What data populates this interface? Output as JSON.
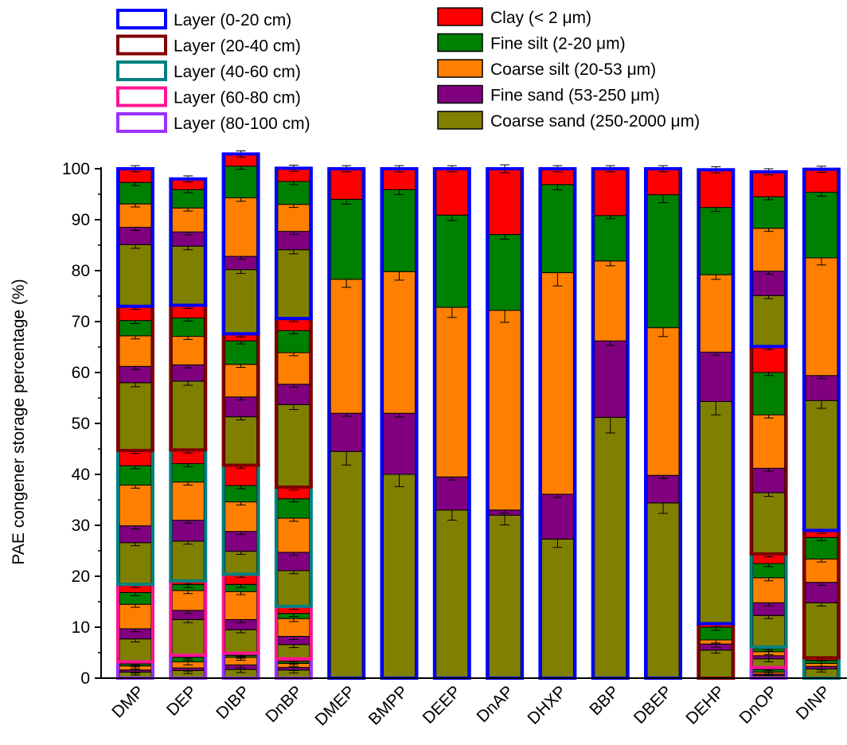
{
  "chart_data": {
    "type": "bar",
    "stacked": true,
    "ylabel": "PAE congener storage percentage (%)",
    "ylim": [
      0,
      100
    ],
    "yticks": [
      0,
      10,
      20,
      30,
      40,
      50,
      60,
      70,
      80,
      90,
      100
    ],
    "categories": [
      "DMP",
      "DEP",
      "DIBP",
      "DnBP",
      "DMEP",
      "BMPP",
      "DEEP",
      "DnAP",
      "DHXP",
      "BBP",
      "DBEP",
      "DEHP",
      "DnOP",
      "DINP"
    ],
    "fractions": [
      {
        "name": "Coarse sand (250-2000 μm)",
        "color": "#808000"
      },
      {
        "name": "Fine sand (53-250 μm)",
        "color": "#800080"
      },
      {
        "name": "Coarse silt (20-53 μm)",
        "color": "#ff8000"
      },
      {
        "name": "Fine silt (2-20 μm)",
        "color": "#008000"
      },
      {
        "name": "Clay (< 2 μm)",
        "color": "#ff0000"
      }
    ],
    "layers": [
      {
        "name": "Layer (80-100 cm)",
        "color": "#9b30ff"
      },
      {
        "name": "Layer (60-80 cm)",
        "color": "#ff1493"
      },
      {
        "name": "Layer (40-60 cm)",
        "color": "#008080"
      },
      {
        "name": "Layer (20-40 cm)",
        "color": "#800000"
      },
      {
        "name": "Layer (0-20 cm)",
        "color": "#0000ff"
      }
    ],
    "bars": [
      {
        "category": "DMP",
        "segments": [
          {
            "layer": 0,
            "fractions": [
              1.2,
              0.4,
              0.8,
              0.4,
              0.4
            ]
          },
          {
            "layer": 1,
            "fractions": [
              4.5,
              2.0,
              4.8,
              2.3,
              1.6
            ]
          },
          {
            "layer": 2,
            "fractions": [
              8.2,
              3.3,
              8.0,
              3.8,
              3.0
            ]
          },
          {
            "layer": 3,
            "fractions": [
              13.3,
              3.2,
              6.0,
              3.0,
              2.8
            ]
          },
          {
            "layer": 4,
            "fractions": [
              12.1,
              3.4,
              4.6,
              4.2,
              2.7
            ]
          }
        ]
      },
      {
        "category": "DEP",
        "segments": [
          {
            "layer": 0,
            "fractions": [
              1.5,
              0.5,
              1.2,
              0.9,
              0.4
            ]
          },
          {
            "layer": 1,
            "fractions": [
              7.0,
              1.8,
              3.9,
              1.2,
              0.7
            ]
          },
          {
            "layer": 2,
            "fractions": [
              7.8,
              4.1,
              7.5,
              3.6,
              2.7
            ]
          },
          {
            "layer": 3,
            "fractions": [
              13.5,
              3.2,
              5.6,
              3.6,
              2.5
            ]
          },
          {
            "layer": 4,
            "fractions": [
              11.6,
              2.8,
              4.7,
              3.6,
              2.1
            ]
          }
        ]
      },
      {
        "category": "DIBP",
        "segments": [
          {
            "layer": 0,
            "fractions": [
              1.7,
              0.9,
              1.5,
              0.4,
              0.4
            ]
          },
          {
            "layer": 1,
            "fractions": [
              4.6,
              2.0,
              5.5,
              1.4,
              2.0
            ]
          },
          {
            "layer": 2,
            "fractions": [
              4.5,
              3.9,
              5.8,
              3.2,
              4.0
            ]
          },
          {
            "layer": 3,
            "fractions": [
              9.5,
              3.9,
              6.4,
              4.6,
              1.4
            ]
          },
          {
            "layer": 4,
            "fractions": [
              12.6,
              2.6,
              11.5,
              6.2,
              2.4
            ]
          }
        ]
      },
      {
        "category": "DnBP",
        "segments": [
          {
            "layer": 0,
            "fractions": [
              1.6,
              0.5,
              0.8,
              0.4,
              0.5
            ]
          },
          {
            "layer": 1,
            "fractions": [
              2.8,
              1.6,
              3.5,
              1.0,
              1.4
            ]
          },
          {
            "layer": 2,
            "fractions": [
              7.0,
              3.6,
              6.7,
              3.8,
              2.3
            ]
          },
          {
            "layer": 3,
            "fractions": [
              16.2,
              4.0,
              6.2,
              4.3,
              2.4
            ]
          },
          {
            "layer": 4,
            "fractions": [
              13.5,
              3.6,
              5.3,
              4.5,
              2.6
            ]
          }
        ]
      },
      {
        "category": "DMEP",
        "segments": [
          {
            "layer": 4,
            "fractions": [
              44.5,
              7.5,
              26.3,
              15.7,
              6.0
            ]
          }
        ]
      },
      {
        "category": "BMPP",
        "segments": [
          {
            "layer": 4,
            "fractions": [
              40.0,
              12.0,
              27.8,
              16.1,
              4.1
            ]
          }
        ]
      },
      {
        "category": "DEEP",
        "segments": [
          {
            "layer": 4,
            "fractions": [
              33.0,
              6.5,
              33.3,
              18.1,
              9.1
            ]
          }
        ]
      },
      {
        "category": "DnAP",
        "segments": [
          {
            "layer": 4,
            "fractions": [
              32.0,
              1.0,
              39.2,
              14.9,
              12.9
            ]
          }
        ]
      },
      {
        "category": "DHXP",
        "segments": [
          {
            "layer": 4,
            "fractions": [
              27.3,
              8.8,
              43.5,
              17.3,
              3.1
            ]
          }
        ]
      },
      {
        "category": "BBP",
        "segments": [
          {
            "layer": 4,
            "fractions": [
              51.2,
              15.0,
              15.7,
              8.9,
              9.2
            ]
          }
        ]
      },
      {
        "category": "DBEP",
        "segments": [
          {
            "layer": 4,
            "fractions": [
              34.4,
              5.4,
              29.0,
              26.1,
              5.1
            ]
          }
        ]
      },
      {
        "category": "DEHP",
        "segments": [
          {
            "layer": 3,
            "fractions": [
              5.5,
              1.2,
              0.8,
              2.5,
              0.7
            ]
          },
          {
            "layer": 4,
            "fractions": [
              43.6,
              9.7,
              15.2,
              13.2,
              7.4
            ]
          }
        ]
      },
      {
        "category": "DnOP",
        "segments": [
          {
            "layer": 0,
            "fractions": [
              0.5,
              0.3,
              0.4,
              0.5,
              0.4
            ]
          },
          {
            "layer": 1,
            "fractions": [
              1.7,
              0.6,
              0.8,
              0.6,
              0.3
            ]
          },
          {
            "layer": 2,
            "fractions": [
              6.2,
              2.5,
              4.9,
              2.8,
              1.9
            ]
          },
          {
            "layer": 3,
            "fractions": [
              12.0,
              4.8,
              10.5,
              8.3,
              5.1
            ]
          },
          {
            "layer": 4,
            "fractions": [
              10.0,
              4.8,
              8.4,
              6.2,
              4.9
            ]
          }
        ]
      },
      {
        "category": "DINP",
        "segments": [
          {
            "layer": 2,
            "fractions": [
              1.8,
              0.5,
              0.6,
              0.6,
              0.5
            ]
          },
          {
            "layer": 3,
            "fractions": [
              10.8,
              4.0,
              4.6,
              4.2,
              1.4
            ]
          },
          {
            "layer": 4,
            "fractions": [
              25.5,
              4.9,
              23.1,
              12.9,
              4.5
            ]
          }
        ]
      }
    ]
  }
}
